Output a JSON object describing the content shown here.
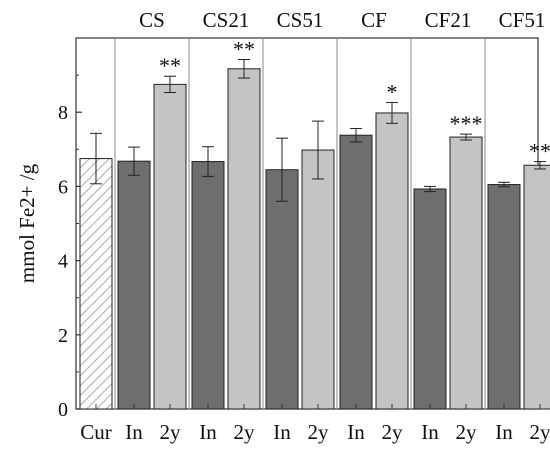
{
  "chart_data": {
    "type": "bar",
    "ylabel": "mmol Fe2+ /g",
    "ylim": [
      0,
      10
    ],
    "yticks": [
      0,
      2,
      4,
      6,
      8
    ],
    "grid": false,
    "groups": [
      {
        "label": "",
        "separator_after": true,
        "bars": [
          {
            "x_label": "Cur",
            "value": 6.75,
            "err": 0.68,
            "style": "hatched",
            "sig": ""
          }
        ]
      },
      {
        "label": "CS",
        "separator_after": true,
        "bars": [
          {
            "x_label": "In",
            "value": 6.68,
            "err": 0.38,
            "style": "dark",
            "sig": ""
          },
          {
            "x_label": "2y",
            "value": 8.75,
            "err": 0.22,
            "style": "light",
            "sig": "**"
          }
        ]
      },
      {
        "label": "CS21",
        "separator_after": true,
        "bars": [
          {
            "x_label": "In",
            "value": 6.67,
            "err": 0.4,
            "style": "dark",
            "sig": ""
          },
          {
            "x_label": "2y",
            "value": 9.17,
            "err": 0.25,
            "style": "light",
            "sig": "**"
          }
        ]
      },
      {
        "label": "CS51",
        "separator_after": true,
        "bars": [
          {
            "x_label": "In",
            "value": 6.45,
            "err": 0.85,
            "style": "dark",
            "sig": ""
          },
          {
            "x_label": "2y",
            "value": 6.98,
            "err": 0.78,
            "style": "light",
            "sig": ""
          }
        ]
      },
      {
        "label": "CF",
        "separator_after": true,
        "bars": [
          {
            "x_label": "In",
            "value": 7.38,
            "err": 0.18,
            "style": "dark",
            "sig": ""
          },
          {
            "x_label": "2y",
            "value": 7.98,
            "err": 0.28,
            "style": "light",
            "sig": "*"
          }
        ]
      },
      {
        "label": "CF21",
        "separator_after": true,
        "bars": [
          {
            "x_label": "In",
            "value": 5.93,
            "err": 0.07,
            "style": "dark",
            "sig": ""
          },
          {
            "x_label": "2y",
            "value": 7.33,
            "err": 0.08,
            "style": "light",
            "sig": "***"
          }
        ]
      },
      {
        "label": "CF51",
        "separator_after": false,
        "bars": [
          {
            "x_label": "In",
            "value": 6.05,
            "err": 0.06,
            "style": "dark",
            "sig": ""
          },
          {
            "x_label": "2y",
            "value": 6.57,
            "err": 0.1,
            "style": "light",
            "sig": "**"
          }
        ]
      }
    ]
  },
  "colors": {
    "dark": "#6e6e6e",
    "light": "#c4c4c4",
    "hatched_fill": "#ffffff",
    "hatch_line": "#8a8a8a",
    "bar_stroke": "#222222",
    "axis": "#333333",
    "separator": "#888888"
  }
}
